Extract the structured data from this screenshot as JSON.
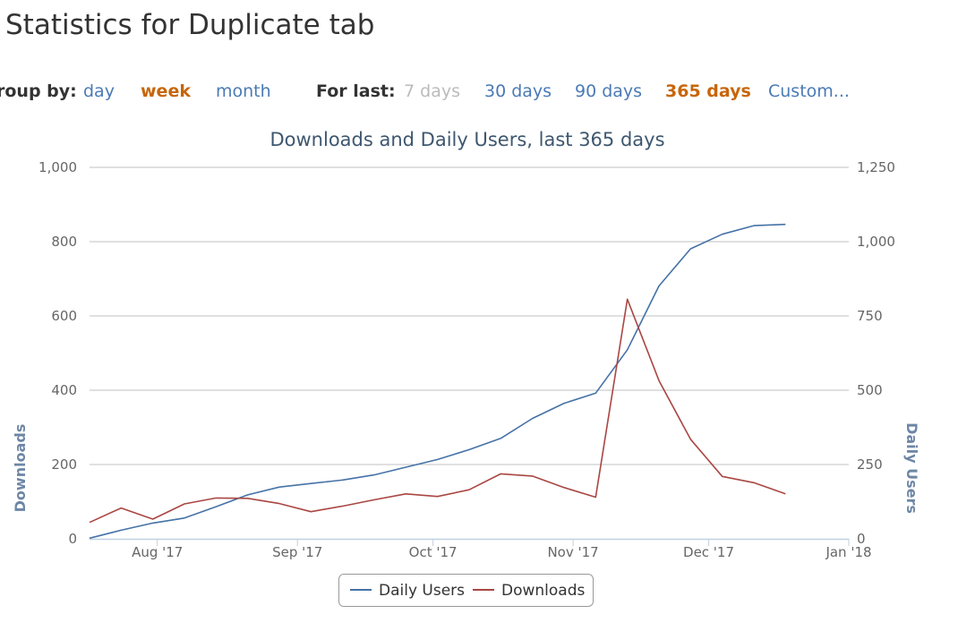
{
  "page": {
    "title": "Statistics for Duplicate tab"
  },
  "controls": {
    "group_by_label": "roup by:",
    "group_by_options": [
      {
        "label": "day",
        "state": "link"
      },
      {
        "label": "week",
        "state": "active"
      },
      {
        "label": "month",
        "state": "link"
      }
    ],
    "for_last_label": "For last:",
    "for_last_options": [
      {
        "label": "7 days",
        "state": "disabled"
      },
      {
        "label": "30 days",
        "state": "link"
      },
      {
        "label": "90 days",
        "state": "link"
      },
      {
        "label": "365 days",
        "state": "active"
      },
      {
        "label": "Custom...",
        "state": "link"
      }
    ]
  },
  "colors": {
    "link": "#4a7ab5",
    "active": "#c7660a",
    "disabled": "#bbbbbb",
    "daily_users_line": "#4572a7",
    "downloads_line": "#aa4643",
    "axis_title": "#6d86a5"
  },
  "chart_data": {
    "type": "line",
    "title": "Downloads and Daily Users, last 365 days",
    "x_tick_labels": [
      "Aug '17",
      "Sep '17",
      "Oct '17",
      "Nov '17",
      "Dec '17",
      "Jan '18"
    ],
    "x_tick_dates": [
      "2017-08-01",
      "2017-09-01",
      "2017-10-01",
      "2017-11-01",
      "2017-12-01",
      "2018-01-01"
    ],
    "xlim": [
      "2017-07-17",
      "2018-01-01"
    ],
    "y_left": {
      "label": "Downloads",
      "ylim": [
        0,
        1000
      ],
      "ticks": [
        "0",
        "200",
        "400",
        "600",
        "800",
        "1,000"
      ],
      "tick_values": [
        0,
        200,
        400,
        600,
        800,
        1000
      ]
    },
    "y_right": {
      "label": "Daily Users",
      "ylim": [
        0,
        1250
      ],
      "ticks": [
        "0",
        "250",
        "500",
        "750",
        "1,000",
        "1,250"
      ],
      "tick_values": [
        0,
        250,
        500,
        750,
        1000,
        1250
      ]
    },
    "grid": true,
    "legend_position": "bottom-center",
    "series": [
      {
        "name": "Daily Users",
        "axis": "right",
        "color": "#4572a7",
        "points": [
          {
            "x": "2017-07-17",
            "y": 2
          },
          {
            "x": "2017-07-24",
            "y": 29
          },
          {
            "x": "2017-07-31",
            "y": 53
          },
          {
            "x": "2017-08-07",
            "y": 70
          },
          {
            "x": "2017-08-14",
            "y": 108
          },
          {
            "x": "2017-08-21",
            "y": 148
          },
          {
            "x": "2017-08-28",
            "y": 174
          },
          {
            "x": "2017-09-04",
            "y": 186
          },
          {
            "x": "2017-09-11",
            "y": 198
          },
          {
            "x": "2017-09-18",
            "y": 215
          },
          {
            "x": "2017-09-25",
            "y": 241
          },
          {
            "x": "2017-10-02",
            "y": 267
          },
          {
            "x": "2017-10-09",
            "y": 300
          },
          {
            "x": "2017-10-16",
            "y": 338
          },
          {
            "x": "2017-10-23",
            "y": 405
          },
          {
            "x": "2017-10-30",
            "y": 456
          },
          {
            "x": "2017-11-06",
            "y": 490
          },
          {
            "x": "2017-11-13",
            "y": 636
          },
          {
            "x": "2017-11-20",
            "y": 851
          },
          {
            "x": "2017-11-27",
            "y": 976
          },
          {
            "x": "2017-12-04",
            "y": 1025
          },
          {
            "x": "2017-12-11",
            "y": 1054
          },
          {
            "x": "2017-12-18",
            "y": 1058
          }
        ]
      },
      {
        "name": "Downloads",
        "axis": "left",
        "color": "#aa4643",
        "points": [
          {
            "x": "2017-07-17",
            "y": 44
          },
          {
            "x": "2017-07-24",
            "y": 83
          },
          {
            "x": "2017-07-31",
            "y": 53
          },
          {
            "x": "2017-08-07",
            "y": 94
          },
          {
            "x": "2017-08-14",
            "y": 110
          },
          {
            "x": "2017-08-21",
            "y": 109
          },
          {
            "x": "2017-08-28",
            "y": 95
          },
          {
            "x": "2017-09-04",
            "y": 73
          },
          {
            "x": "2017-09-11",
            "y": 88
          },
          {
            "x": "2017-09-18",
            "y": 105
          },
          {
            "x": "2017-09-25",
            "y": 121
          },
          {
            "x": "2017-10-02",
            "y": 114
          },
          {
            "x": "2017-10-09",
            "y": 132
          },
          {
            "x": "2017-10-16",
            "y": 175
          },
          {
            "x": "2017-10-23",
            "y": 169
          },
          {
            "x": "2017-10-30",
            "y": 138
          },
          {
            "x": "2017-11-06",
            "y": 112
          },
          {
            "x": "2017-11-13",
            "y": 645
          },
          {
            "x": "2017-11-20",
            "y": 426
          },
          {
            "x": "2017-11-27",
            "y": 268
          },
          {
            "x": "2017-12-04",
            "y": 168
          },
          {
            "x": "2017-12-11",
            "y": 151
          },
          {
            "x": "2017-12-18",
            "y": 121
          }
        ]
      }
    ]
  }
}
